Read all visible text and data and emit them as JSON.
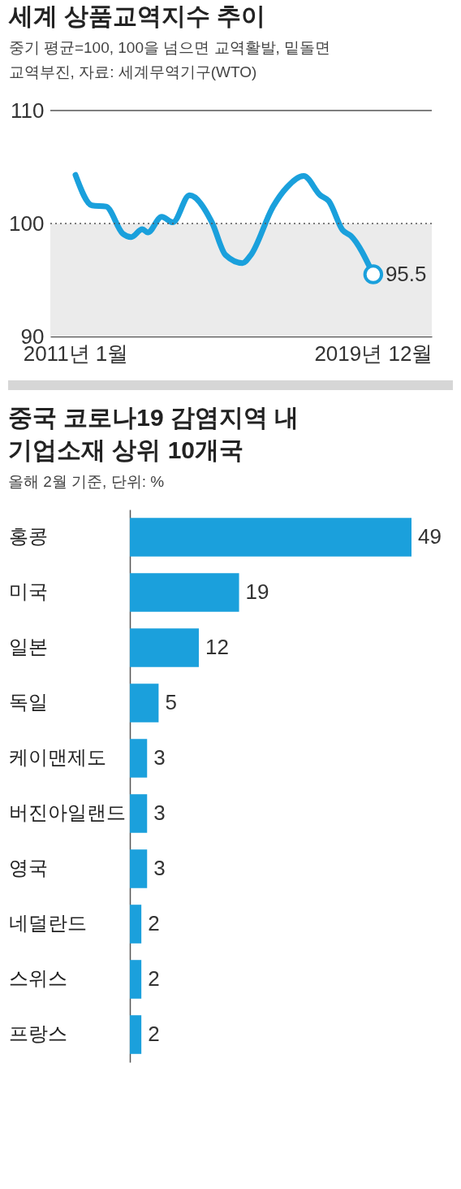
{
  "chart_data": [
    {
      "type": "line",
      "title": "세계 상품교역지수 추이",
      "subtitle": "중기 평균=100, 100을 넘으면 교역활발, 밑돌면\n교역부진, 자료: 세계무역기구(WTO)",
      "x": [
        "2011-01",
        "2011-07",
        "2011-12",
        "2012-06",
        "2012-09",
        "2013-01",
        "2013-03",
        "2013-08",
        "2013-12",
        "2014-06",
        "2015-02",
        "2015-07",
        "2016-01",
        "2016-04",
        "2016-12",
        "2017-05",
        "2017-11",
        "2018-05",
        "2018-08",
        "2019-01",
        "2019-04",
        "2019-12"
      ],
      "series": [
        {
          "color": "#1aa0dc",
          "values": [
            104.3,
            101.6,
            101.5,
            99.1,
            98.8,
            99.5,
            99.2,
            100.6,
            100.1,
            102.5,
            100.1,
            97.2,
            96.5,
            97.2,
            101.5,
            103.2,
            104.2,
            102.5,
            102.0,
            99.4,
            98.9,
            95.5
          ]
        }
      ],
      "xlim": [
        "2010-04",
        "2021-09"
      ],
      "xticks": [
        {
          "value": "2011-01",
          "label": "2011년 1월"
        },
        {
          "value": "2019-12",
          "label": "2019년 12월"
        }
      ],
      "ylim": [
        90,
        110
      ],
      "yticks": [
        90,
        100,
        110
      ],
      "grid": false,
      "marker": "none",
      "line_style": "solid",
      "ref_lines": [
        {
          "axis": "y",
          "value": 110,
          "line_style": "solid",
          "color": "#555555"
        },
        {
          "axis": "y",
          "value": 100,
          "line_style": "dotted",
          "color": "#555555"
        }
      ],
      "bands": [
        {
          "axis": "y",
          "from": 90,
          "to": 100,
          "color": "#ebebeb"
        }
      ],
      "annotations": [
        {
          "text": "95.5",
          "x": "2019-12",
          "y": 95.5
        }
      ]
    },
    {
      "type": "bar",
      "orientation": "horizontal",
      "title": "중국 코로나19 감염지역 내\n기업소재 상위 10개국",
      "subtitle": "올해 2월 기준, 단위: %",
      "categories": [
        "홍콩",
        "미국",
        "일본",
        "독일",
        "케이맨제도",
        "버진아일랜드",
        "영국",
        "네덜란드",
        "스위스",
        "프랑스"
      ],
      "values": [
        49,
        19,
        12,
        5,
        3,
        3,
        3,
        2,
        2,
        2
      ],
      "color": "#1ba0dc",
      "data_labels": true,
      "tick_labels": "y"
    }
  ]
}
